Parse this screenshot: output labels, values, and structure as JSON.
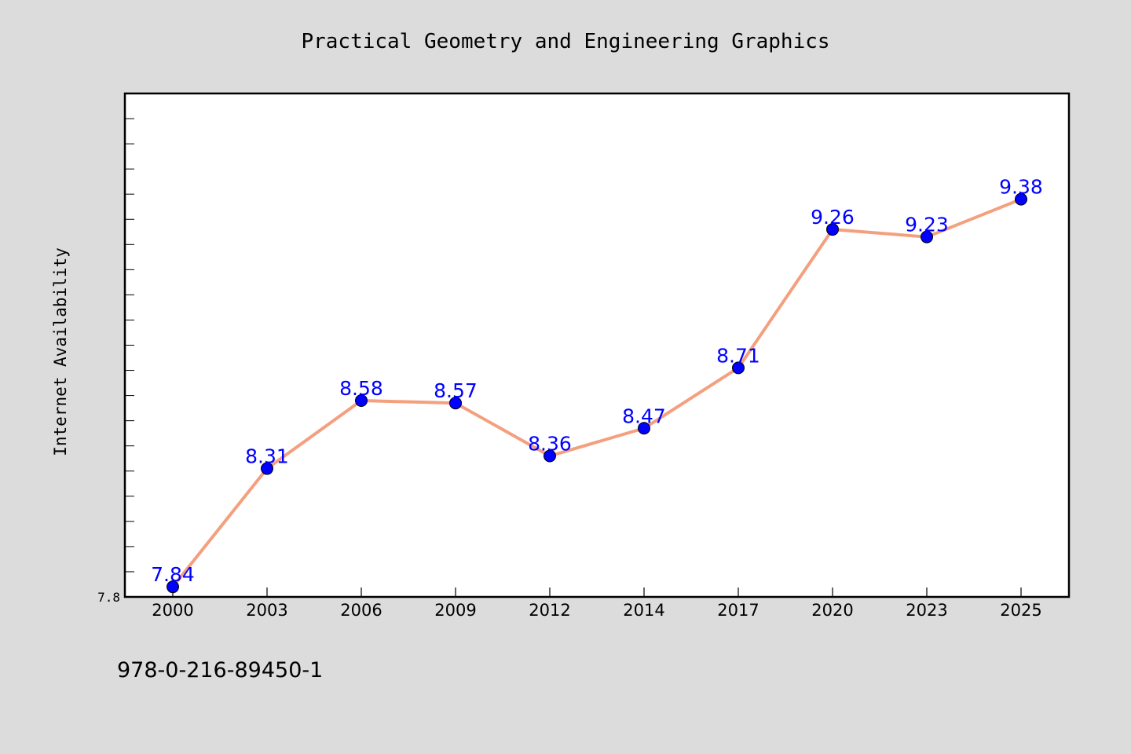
{
  "chart_data": {
    "type": "line",
    "title": "Practical Geometry and Engineering Graphics",
    "xlabel": "",
    "ylabel": "Internet Availability",
    "categories": [
      "2000",
      "2003",
      "2006",
      "2009",
      "2012",
      "2014",
      "2017",
      "2020",
      "2023",
      "2025"
    ],
    "series": [
      {
        "values": [
          7.84,
          8.31,
          8.58,
          8.57,
          8.36,
          8.47,
          8.71,
          9.26,
          9.23,
          9.38
        ],
        "data_labels": [
          "7.84",
          "8.31",
          "8.58",
          "8.57",
          "8.36",
          "8.47",
          "8.71",
          "9.26",
          "9.23",
          "9.38"
        ],
        "line_color": "#f4a07e",
        "marker_color": "#0000ff",
        "label_color": "#0000ff"
      }
    ],
    "ylim": [
      7.8,
      9.8
    ],
    "y_tick_labels": [
      "7.8"
    ],
    "y_minor_step": 0.1,
    "grid": false,
    "legend": "none",
    "footer_text": "978-0-216-89450-1",
    "background_color": "#dcdcdc",
    "plot_background_color": "#ffffff"
  }
}
